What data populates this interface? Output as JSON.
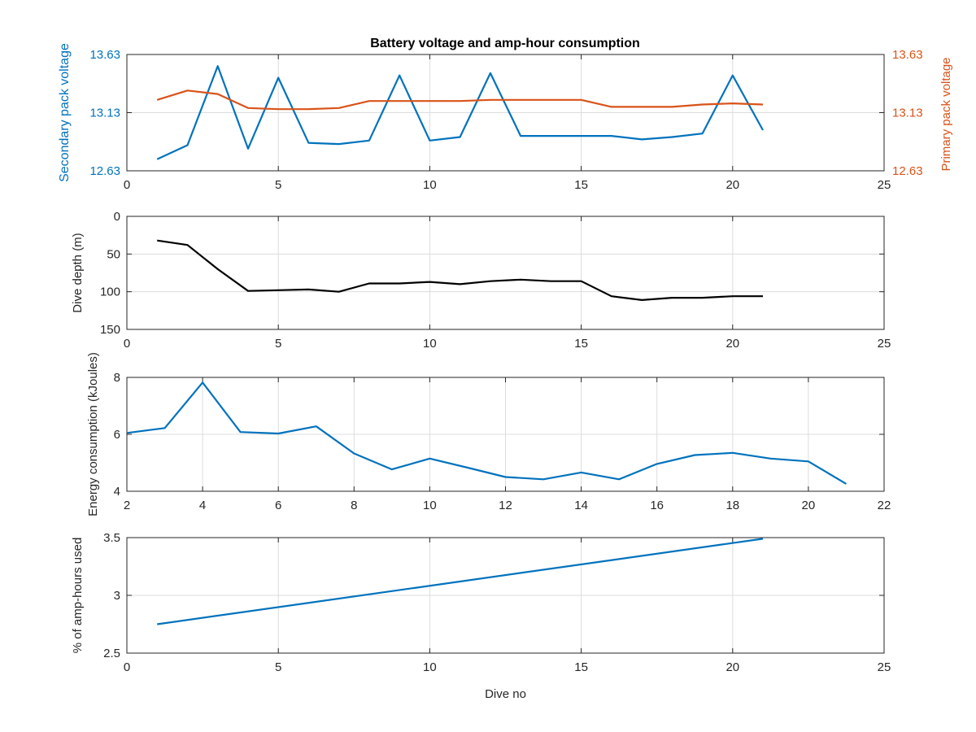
{
  "figure_title": "Battery voltage and amp-hour consumption",
  "colors": {
    "blue": "#0072BD",
    "orange": "#D95319",
    "black": "#000000",
    "axis_text": "#262626",
    "grid": "#dcdcdc"
  },
  "chart_data": [
    {
      "type": "line",
      "title": "Battery voltage and amp-hour consumption",
      "xlabel": "",
      "ylabel": "Secondary pack voltage",
      "ylabel_right": "Primary pack voltage",
      "xlim": [
        0,
        25
      ],
      "ylim": [
        12.63,
        13.63
      ],
      "ylim_right": [
        12.63,
        13.63
      ],
      "xticks": [
        "0",
        "5",
        "10",
        "15",
        "20",
        "25"
      ],
      "xtick_values": [
        0,
        5,
        10,
        15,
        20,
        25
      ],
      "yticks": [
        "12.63",
        "13.13",
        "13.63"
      ],
      "ytick_values": [
        12.63,
        13.13,
        13.63
      ],
      "yticks_right": [
        "12.63",
        "13.13",
        "13.63"
      ],
      "ytick_values_right": [
        12.63,
        13.13,
        13.63
      ],
      "grid": true,
      "series": [
        {
          "axis": "left",
          "color": "#0072BD",
          "x": [
            1,
            2,
            3,
            4,
            5,
            6,
            7,
            8,
            9,
            10,
            11,
            12,
            13,
            14,
            15,
            16,
            17,
            18,
            19,
            20,
            21
          ],
          "values": [
            12.73,
            12.85,
            13.53,
            12.82,
            13.43,
            12.87,
            12.86,
            12.89,
            13.45,
            12.89,
            12.92,
            13.47,
            12.93,
            12.93,
            12.93,
            12.93,
            12.9,
            12.92,
            12.95,
            13.45,
            12.98
          ]
        },
        {
          "axis": "right",
          "color": "#D95319",
          "x": [
            1,
            2,
            3,
            4,
            5,
            6,
            7,
            8,
            9,
            10,
            11,
            12,
            13,
            14,
            15,
            16,
            17,
            18,
            19,
            20,
            21
          ],
          "values": [
            13.24,
            13.32,
            13.29,
            13.17,
            13.16,
            13.16,
            13.17,
            13.23,
            13.23,
            13.23,
            13.23,
            13.24,
            13.24,
            13.24,
            13.24,
            13.18,
            13.18,
            13.18,
            13.2,
            13.21,
            13.2
          ]
        }
      ]
    },
    {
      "type": "line",
      "title": "",
      "xlabel": "",
      "ylabel": "Dive depth (m)",
      "xlim": [
        0,
        25
      ],
      "ylim": [
        0,
        150
      ],
      "y_reversed": true,
      "xticks": [
        "0",
        "5",
        "10",
        "15",
        "20",
        "25"
      ],
      "xtick_values": [
        0,
        5,
        10,
        15,
        20,
        25
      ],
      "yticks": [
        "0",
        "50",
        "100",
        "150"
      ],
      "ytick_values": [
        0,
        50,
        100,
        150
      ],
      "grid": true,
      "series": [
        {
          "axis": "left",
          "color": "#000000",
          "x": [
            1,
            2,
            3,
            4,
            5,
            6,
            7,
            8,
            9,
            10,
            11,
            12,
            13,
            14,
            15,
            16,
            17,
            18,
            19,
            20,
            21
          ],
          "values": [
            32,
            38,
            70,
            99,
            98,
            97,
            100,
            89,
            89,
            87,
            90,
            86,
            84,
            86,
            86,
            106,
            111,
            108,
            108,
            106,
            106
          ]
        }
      ]
    },
    {
      "type": "line",
      "title": "",
      "xlabel": "",
      "ylabel": "Energy consumption (kJoules)",
      "xlim": [
        2,
        22
      ],
      "ylim": [
        4,
        8
      ],
      "xticks": [
        "2",
        "4",
        "6",
        "8",
        "10",
        "12",
        "14",
        "16",
        "18",
        "20",
        "22"
      ],
      "xtick_values": [
        2,
        4,
        6,
        8,
        10,
        12,
        14,
        16,
        18,
        20,
        22
      ],
      "yticks": [
        "4",
        "6",
        "8"
      ],
      "ytick_values": [
        4,
        6,
        8
      ],
      "grid": true,
      "series": [
        {
          "axis": "left",
          "color": "#0072BD",
          "x": [
            2,
            3,
            4,
            5,
            6,
            7,
            8,
            9,
            10,
            11,
            12,
            13,
            14,
            15,
            16,
            17,
            18,
            19,
            20,
            21
          ],
          "values": [
            6.05,
            6.22,
            7.82,
            6.08,
            6.03,
            6.28,
            5.33,
            4.77,
            5.15,
            4.83,
            4.5,
            4.42,
            4.66,
            4.42,
            4.96,
            5.27,
            5.35,
            5.15,
            5.05,
            4.26
          ]
        }
      ]
    },
    {
      "type": "line",
      "title": "",
      "xlabel": "Dive no",
      "ylabel": "% of amp-hours used",
      "xlim": [
        0,
        25
      ],
      "ylim": [
        2.5,
        3.5
      ],
      "xticks": [
        "0",
        "5",
        "10",
        "15",
        "20",
        "25"
      ],
      "xtick_values": [
        0,
        5,
        10,
        15,
        20,
        25
      ],
      "yticks": [
        "2.5",
        "3",
        "3.5"
      ],
      "ytick_values": [
        2.5,
        3,
        3.5
      ],
      "grid": true,
      "series": [
        {
          "axis": "left",
          "color": "#0072BD",
          "x": [
            1,
            21
          ],
          "values": [
            2.75,
            3.49
          ]
        }
      ]
    }
  ]
}
